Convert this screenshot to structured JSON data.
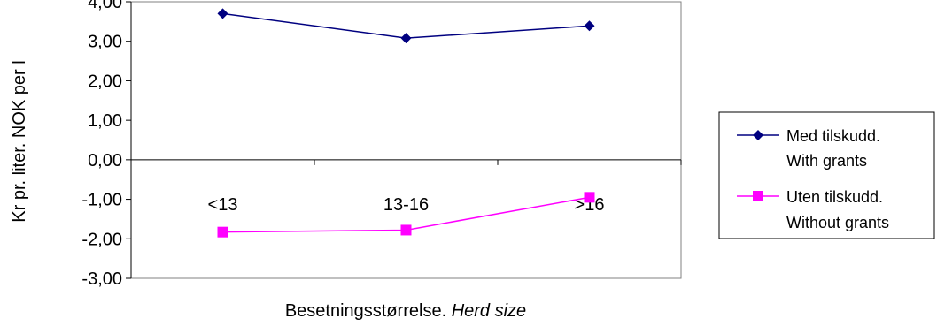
{
  "chart_data": {
    "type": "line",
    "title": "",
    "ylabel": "Kr pr. liter. NOK per l",
    "xlabel_main": "Besetningsstørrelse.",
    "xlabel_italic": "Herd size",
    "categories": [
      "<13",
      "13-16",
      ">16"
    ],
    "ylim": [
      -3,
      4
    ],
    "yticks": [
      4,
      3,
      2,
      1,
      0,
      -1,
      -2,
      -3
    ],
    "ytick_labels": [
      "4,00",
      "3,00",
      "2,00",
      "1,00",
      "0,00",
      "-1,00",
      "-2,00",
      "-3,00"
    ],
    "grid": false,
    "legend_position": "right",
    "series": [
      {
        "name_line1": "Med tilskudd.",
        "name_line2": "With grants",
        "values": [
          3.7,
          3.08,
          3.39
        ],
        "color": "#000080",
        "marker": "diamond"
      },
      {
        "name_line1": "Uten tilskudd.",
        "name_line2": "Without grants",
        "values": [
          -1.83,
          -1.78,
          -0.95
        ],
        "color": "#FF00FF",
        "marker": "square"
      }
    ]
  }
}
